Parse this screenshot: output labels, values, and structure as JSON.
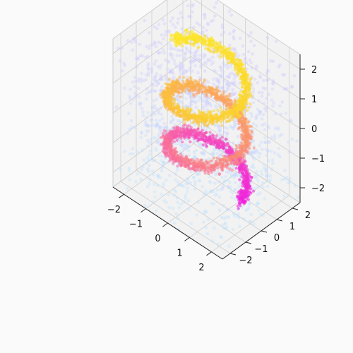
{
  "chart_data": {
    "type": "scatter",
    "projection": "3d",
    "title": "",
    "xlabel": "",
    "ylabel": "",
    "zlabel": "",
    "xlim": [
      -2.5,
      2.5
    ],
    "ylim": [
      -2.5,
      2.5
    ],
    "zlim": [
      -2.5,
      2.5
    ],
    "xticks": [
      -2,
      -1,
      0,
      1,
      2
    ],
    "yticks": [
      -2,
      -1,
      0,
      1,
      2
    ],
    "zticks": [
      -2,
      -1,
      0,
      1,
      2
    ],
    "x_tick_labels": [
      "−2",
      "−1",
      "0",
      "1",
      "2"
    ],
    "y_tick_labels": [
      "−2",
      "−1",
      "0",
      "1",
      "2"
    ],
    "z_tick_labels": [
      "−2",
      "−1",
      "0",
      "1",
      "2"
    ],
    "grid": true,
    "background_colors": {
      "page": "#fafafa",
      "pane": "#f2f2f2",
      "grid": "#cfcfcf"
    },
    "series": [
      {
        "kind": "helix",
        "parametric": "x = 1.5·cos(t), y = 1.5·sin(t), z = t/(2π)·1.6 − 2.0, t ∈ [0, 5π]",
        "radius": 1.5,
        "turns": 2.5,
        "z_range": [
          -2.0,
          2.0
        ],
        "points_sample": [
          {
            "x": 1.5,
            "y": 0.0,
            "z": -2.0
          },
          {
            "x": 0.0,
            "y": 1.5,
            "z": -1.6
          },
          {
            "x": -1.5,
            "y": 0.0,
            "z": -1.2
          },
          {
            "x": 0.0,
            "y": -1.5,
            "z": -0.8
          },
          {
            "x": 1.5,
            "y": 0.0,
            "z": -0.4
          },
          {
            "x": 0.0,
            "y": 1.5,
            "z": 0.0
          },
          {
            "x": -1.5,
            "y": 0.0,
            "z": 0.4
          },
          {
            "x": 0.0,
            "y": -1.5,
            "z": 0.8
          },
          {
            "x": 1.5,
            "y": 0.0,
            "z": 1.2
          },
          {
            "x": 0.0,
            "y": 1.5,
            "z": 1.6
          },
          {
            "x": -1.5,
            "y": 0.0,
            "z": 2.0
          }
        ],
        "colormap": [
          "#f01ee0",
          "#f86aa0",
          "#fba060",
          "#fccf30",
          "#fde725"
        ],
        "color_by": "z"
      },
      {
        "kind": "background_noise",
        "distribution": "uniform in cube [-2.5, 2.5]^3",
        "opacity": 0.35,
        "colormap": [
          "#b9e6ff",
          "#c7d3ff",
          "#d3c3ff"
        ],
        "color_by": "z"
      }
    ]
  }
}
